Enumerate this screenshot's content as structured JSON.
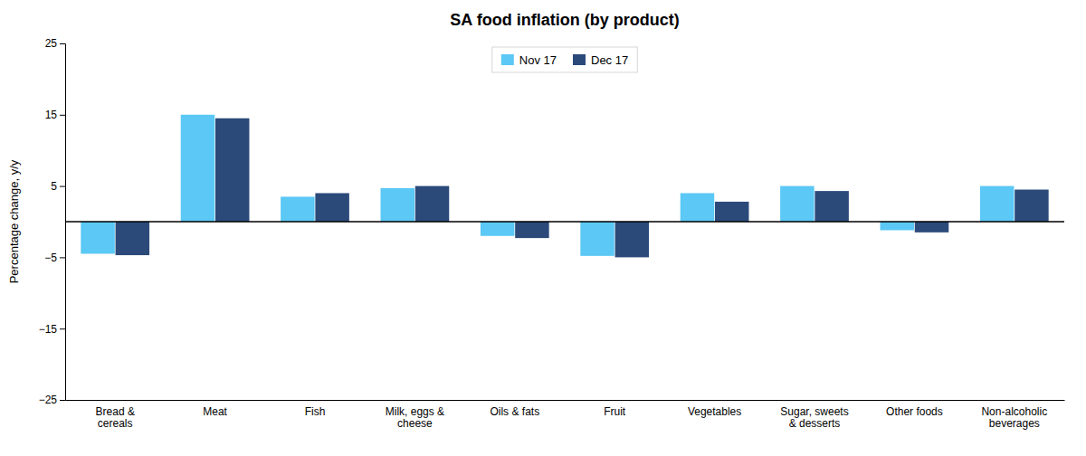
{
  "chart_data": {
    "type": "bar",
    "title": "SA food inflation (by product)",
    "ylabel": "Percentage change, y/y",
    "categories": [
      "Bread &\ncereals",
      "Meat",
      "Fish",
      "Milk, eggs &\ncheese",
      "Oils & fats",
      "Fruit",
      "Vegetables",
      "Sugar, sweets\n& desserts",
      "Other foods",
      "Non-alcoholic\nbeverages"
    ],
    "series": [
      {
        "name": "Nov 17",
        "color": "#5BC8F5",
        "values": [
          -4.5,
          15.0,
          3.5,
          4.7,
          -2.0,
          -4.8,
          4.0,
          5.0,
          -1.2,
          5.0
        ]
      },
      {
        "name": "Dec 17",
        "color": "#2B4A7A",
        "values": [
          -4.7,
          14.5,
          4.0,
          5.0,
          -2.3,
          -5.0,
          2.8,
          4.3,
          -1.5,
          4.5
        ]
      }
    ],
    "ylim": [
      -25,
      25
    ],
    "yticks": [
      {
        "value": -25,
        "label": "−25"
      },
      {
        "value": -15,
        "label": "−15"
      },
      {
        "value": -5,
        "label": "−5"
      },
      5,
      15,
      25
    ],
    "legend": "top",
    "grid": false
  }
}
